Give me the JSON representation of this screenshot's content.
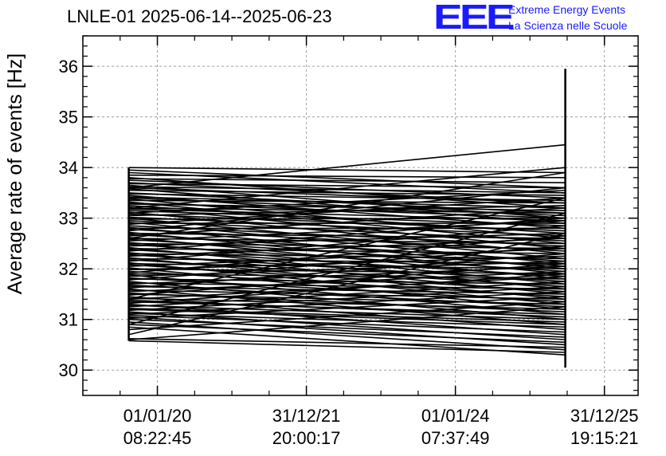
{
  "header": {
    "title": "LNLE-01 2025-06-14--2025-06-23",
    "logo_text": "EEE",
    "logo_line1": "Extreme Energy Events",
    "logo_line2": "La Scienza nelle Scuole"
  },
  "colors": {
    "brand": "#1a1aff",
    "lines": "#000000",
    "grid": "#a0a0a0"
  },
  "chart_data": {
    "type": "line",
    "title": "LNLE-01 2025-06-14--2025-06-23",
    "xlabel": "",
    "ylabel": "Average rate of events [Hz]",
    "ylim": [
      29.5,
      36.6
    ],
    "yticks": [
      30,
      31,
      32,
      33,
      34,
      35,
      36
    ],
    "ytick_labels": [
      "30",
      "31",
      "32",
      "33",
      "34",
      "35",
      "36"
    ],
    "x_scale": "time",
    "xlim": [
      "2019-01-01 00:00:00",
      "2026-06-15 00:00:00"
    ],
    "xticks": [
      {
        "date": "01/01/20",
        "time": "08:22:45",
        "value": "2020-01-01 08:22:45"
      },
      {
        "date": "31/12/21",
        "time": "20:00:17",
        "value": "2021-12-31 20:00:17"
      },
      {
        "date": "01/01/24",
        "time": "07:37:49",
        "value": "2024-01-01 07:37:49"
      },
      {
        "date": "31/12/25",
        "time": "19:15:21",
        "value": "2025-12-31 19:15:21"
      }
    ],
    "grid": true,
    "series": [
      {
        "x": [
          "2019-08-14",
          "2025-06-23"
        ],
        "segments": [
          [
            34.0,
            33.9
          ],
          [
            33.95,
            33.6
          ],
          [
            33.9,
            33.5
          ],
          [
            33.85,
            33.8
          ],
          [
            33.8,
            33.2
          ],
          [
            33.78,
            33.7
          ],
          [
            33.75,
            33.4
          ],
          [
            33.7,
            33.3
          ],
          [
            33.68,
            33.6
          ],
          [
            33.65,
            33.0
          ],
          [
            33.62,
            33.5
          ],
          [
            33.6,
            33.3
          ],
          [
            33.58,
            32.9
          ],
          [
            33.55,
            33.45
          ],
          [
            33.5,
            33.1
          ],
          [
            33.48,
            33.35
          ],
          [
            33.45,
            32.8
          ],
          [
            33.42,
            33.2
          ],
          [
            33.4,
            33.05
          ],
          [
            33.38,
            32.6
          ],
          [
            33.35,
            33.3
          ],
          [
            33.32,
            32.5
          ],
          [
            33.3,
            33.0
          ],
          [
            33.28,
            33.15
          ],
          [
            33.25,
            32.7
          ],
          [
            33.22,
            32.4
          ],
          [
            33.2,
            33.1
          ],
          [
            33.18,
            32.95
          ],
          [
            33.15,
            32.85
          ],
          [
            33.12,
            32.3
          ],
          [
            33.1,
            33.55
          ],
          [
            33.08,
            32.75
          ],
          [
            33.05,
            33.25
          ],
          [
            33.02,
            32.65
          ],
          [
            33.0,
            32.2
          ],
          [
            32.98,
            33.0
          ],
          [
            32.95,
            32.55
          ],
          [
            32.92,
            32.1
          ],
          [
            32.9,
            32.9
          ],
          [
            32.88,
            33.4
          ],
          [
            32.85,
            32.45
          ],
          [
            32.82,
            32.0
          ],
          [
            32.8,
            32.8
          ],
          [
            32.78,
            32.35
          ],
          [
            32.75,
            33.6
          ],
          [
            32.72,
            31.9
          ],
          [
            32.7,
            32.6
          ],
          [
            32.68,
            32.15
          ],
          [
            32.65,
            33.2
          ],
          [
            32.62,
            31.8
          ],
          [
            32.6,
            32.5
          ],
          [
            32.58,
            32.05
          ],
          [
            32.55,
            32.95
          ],
          [
            32.52,
            31.7
          ],
          [
            32.5,
            32.4
          ],
          [
            32.48,
            31.95
          ],
          [
            32.45,
            32.7
          ],
          [
            32.42,
            31.6
          ],
          [
            32.4,
            32.3
          ],
          [
            32.38,
            31.85
          ],
          [
            32.35,
            33.0
          ],
          [
            32.32,
            31.5
          ],
          [
            32.3,
            32.2
          ],
          [
            32.28,
            31.75
          ],
          [
            32.25,
            32.6
          ],
          [
            32.22,
            31.4
          ],
          [
            32.2,
            32.1
          ],
          [
            32.18,
            31.65
          ],
          [
            32.15,
            32.85
          ],
          [
            32.12,
            31.3
          ],
          [
            32.1,
            32.0
          ],
          [
            32.08,
            31.55
          ],
          [
            32.05,
            32.4
          ],
          [
            32.02,
            31.2
          ],
          [
            32.0,
            31.9
          ],
          [
            31.98,
            32.25
          ],
          [
            31.95,
            31.45
          ],
          [
            31.92,
            32.65
          ],
          [
            31.9,
            31.8
          ],
          [
            31.88,
            31.1
          ],
          [
            31.85,
            32.15
          ],
          [
            31.82,
            31.35
          ],
          [
            31.8,
            31.7
          ],
          [
            31.78,
            32.45
          ],
          [
            31.75,
            31.0
          ],
          [
            31.72,
            31.6
          ],
          [
            31.7,
            32.05
          ],
          [
            31.68,
            31.25
          ],
          [
            31.65,
            31.5
          ],
          [
            31.62,
            32.3
          ],
          [
            31.6,
            30.9
          ],
          [
            31.58,
            31.4
          ],
          [
            31.55,
            31.95
          ],
          [
            31.52,
            31.15
          ],
          [
            31.5,
            31.3
          ],
          [
            31.48,
            32.1
          ],
          [
            31.45,
            30.8
          ],
          [
            31.42,
            31.2
          ],
          [
            31.4,
            31.85
          ],
          [
            31.38,
            31.05
          ],
          [
            31.35,
            31.1
          ],
          [
            31.32,
            31.9
          ],
          [
            31.3,
            30.7
          ],
          [
            31.28,
            31.0
          ],
          [
            31.25,
            31.75
          ],
          [
            31.22,
            30.95
          ],
          [
            31.2,
            30.9
          ],
          [
            31.18,
            31.65
          ],
          [
            31.15,
            30.6
          ],
          [
            31.12,
            30.85
          ],
          [
            31.1,
            31.55
          ],
          [
            31.08,
            30.75
          ],
          [
            31.05,
            30.5
          ],
          [
            31.02,
            31.45
          ],
          [
            31.0,
            30.65
          ],
          [
            30.95,
            30.4
          ],
          [
            30.9,
            30.55
          ],
          [
            30.85,
            30.3
          ],
          [
            30.8,
            31.35
          ],
          [
            30.62,
            30.45
          ],
          [
            30.6,
            31.25
          ],
          [
            30.58,
            30.35
          ],
          [
            33.6,
            34.45
          ],
          [
            33.2,
            34.0
          ],
          [
            32.6,
            33.9
          ],
          [
            31.4,
            33.4
          ],
          [
            30.9,
            33.1
          ],
          [
            30.7,
            32.7
          ]
        ]
      }
    ],
    "endpoint_ranges": [
      {
        "x": "2019-08-14",
        "ymin": 30.58,
        "ymax": 34.0
      },
      {
        "x": "2025-06-23",
        "ymin": 30.05,
        "ymax": 35.95
      }
    ]
  }
}
